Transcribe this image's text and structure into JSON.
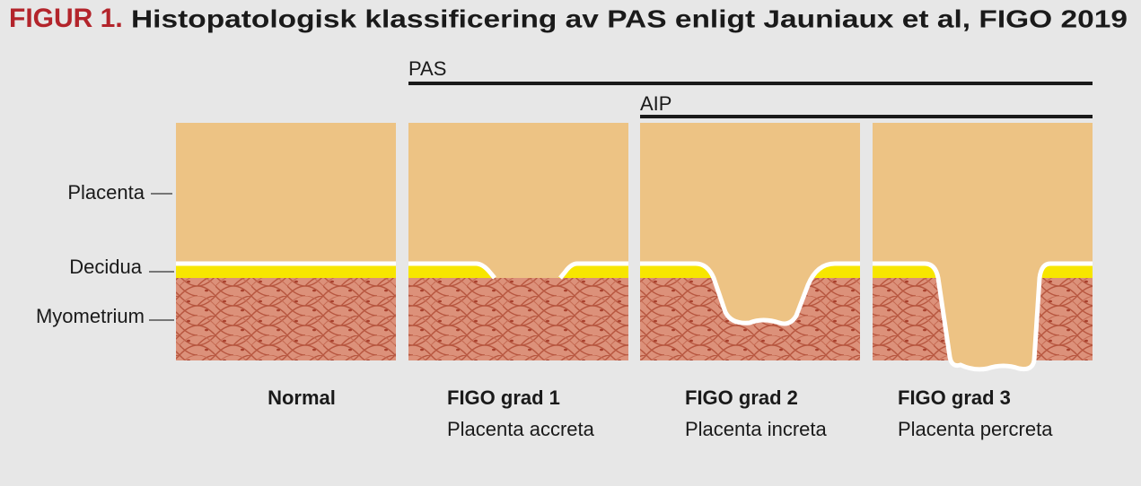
{
  "header": {
    "label": "FIGUR 1.",
    "title": "Histopatologisk klassificering av PAS enligt Jauniaux et al, FIGO 2019"
  },
  "brackets": {
    "pas": "PAS",
    "aip": "AIP"
  },
  "layers": {
    "placenta": "Placenta",
    "decidua": "Decidua",
    "myometrium": "Myometrium"
  },
  "panels": [
    {
      "title": "Normal"
    },
    {
      "title": "FIGO grad 1",
      "subtitle": "Placenta accreta"
    },
    {
      "title": "FIGO grad 2",
      "subtitle": "Placenta increta"
    },
    {
      "title": "FIGO grad 3",
      "subtitle": "Placenta percreta"
    }
  ]
}
